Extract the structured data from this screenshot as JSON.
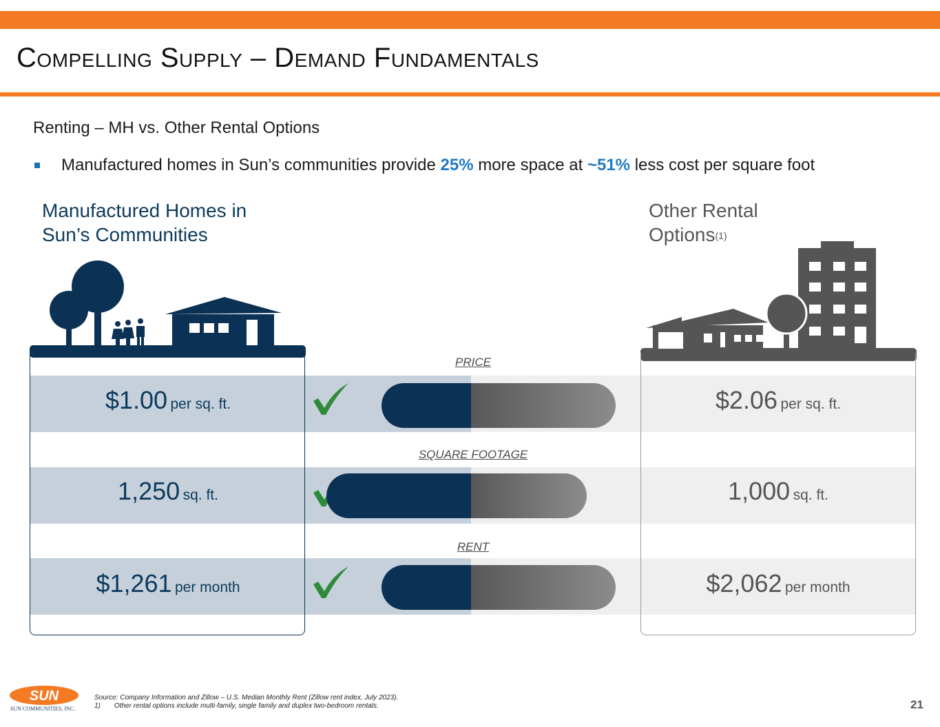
{
  "title": "Compelling Supply – Demand Fundamentals",
  "subtitle": "Renting – MH vs. Other Rental Options",
  "bullet": {
    "pre": "Manufactured homes in Sun’s communities provide ",
    "hl1": "25%",
    "mid": " more space at ",
    "hl2": "~51%",
    "post": " less cost per square foot"
  },
  "left_heading": {
    "line1": "Manufactured Homes in",
    "line2": "Sun’s Communities"
  },
  "right_heading": {
    "line1": "Other Rental",
    "line2": "Options",
    "sup": "(1)"
  },
  "metrics": [
    {
      "label": "PRICE",
      "left_value": "$1.00",
      "left_unit": "per sq. ft.",
      "right_value": "$2.06",
      "right_unit": "per sq. ft.",
      "left_num": 1.0,
      "right_num": 2.06
    },
    {
      "label": "SQUARE FOOTAGE",
      "left_value": "1,250",
      "left_unit": "sq. ft.",
      "right_value": "1,000",
      "right_unit": "sq. ft.",
      "left_num": 1250,
      "right_num": 1000
    },
    {
      "label": "RENT",
      "left_value": "$1,261",
      "left_unit": "per month",
      "right_value": "$2,062",
      "right_unit": "per month",
      "left_num": 1261,
      "right_num": 2062
    }
  ],
  "footer": {
    "source": "Source: Company Information and Zillow – U.S. Median Monthly Rent (Zillow rent index, July 2023).",
    "note_num": "1)",
    "note_text": "Other rental options include multi-family, single family and duplex two-bedroom rentals.",
    "logo_text": "SUN",
    "logo_sub": "SUN COMMUNITIES, INC.",
    "page": "21"
  },
  "colors": {
    "accent": "#f47a24",
    "navy": "#0b3154",
    "highlight": "#1e7bc5",
    "check": "#2e8b3a",
    "grey": "#555555"
  },
  "icons": {
    "left_illustration": "trees-family-house-icon",
    "right_illustration": "house-tree-apartment-icon",
    "check": "check-icon"
  }
}
